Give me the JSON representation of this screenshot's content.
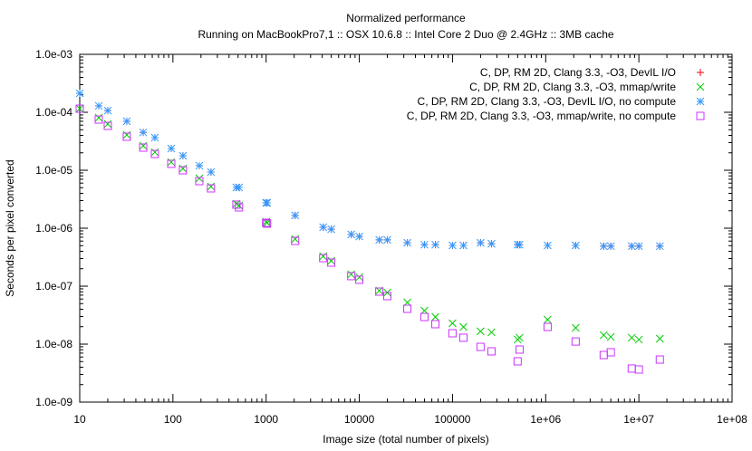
{
  "chart_data": {
    "type": "scatter",
    "title": "Normalized performance",
    "subtitle": "Running on MacBookPro7,1 :: OSX 10.6.8 :: Intel Core 2 Duo @ 2.4GHz :: 3MB cache",
    "xlabel": "Image size (total number of pixels)",
    "ylabel": "Seconds per pixel converted",
    "xscale": "log",
    "yscale": "log",
    "xlim": [
      10,
      100000000
    ],
    "ylim": [
      1e-09,
      0.001
    ],
    "grid": false,
    "legend": "top-right",
    "x_ticks": [
      "10",
      "100",
      "1000",
      "10000",
      "100000",
      "1e+06",
      "1e+07",
      "1e+08"
    ],
    "y_ticks": [
      "1.0e-09",
      "1.0e-08",
      "1.0e-07",
      "1.0e-06",
      "1.0e-05",
      "1.0e-04",
      "1.0e-03"
    ],
    "x": [
      10,
      16,
      20,
      32,
      48,
      64,
      96,
      128,
      192,
      256,
      480,
      512,
      1000,
      1024,
      2048,
      4096,
      5000,
      8192,
      10000,
      16384,
      20000,
      32768,
      50000,
      65536,
      100000,
      131072,
      200000,
      262144,
      500000,
      524288,
      1048576,
      2097152,
      4194304,
      5000000,
      8388608,
      10000000,
      16777216
    ],
    "series": [
      {
        "name": "C, DP, RM 2D, Clang 3.3, -O3, DevIL I/O",
        "marker": "plus",
        "color": "#ff0000",
        "values": [
          0.000213,
          0.000129,
          0.000107,
          7e-05,
          4.5e-05,
          3.65e-05,
          2.37e-05,
          1.78e-05,
          1.2e-05,
          9.3e-06,
          5.05e-06,
          5.05e-06,
          2.74e-06,
          2.74e-06,
          1.66e-06,
          1.04e-06,
          9.6e-07,
          7.8e-07,
          7.2e-07,
          6.3e-07,
          6.3e-07,
          5.6e-07,
          5.2e-07,
          5.2e-07,
          5.05e-07,
          5.05e-07,
          5.6e-07,
          5.4e-07,
          5.2e-07,
          5.2e-07,
          5.05e-07,
          5.05e-07,
          4.9e-07,
          4.9e-07,
          4.9e-07,
          4.9e-07,
          4.9e-07
        ]
      },
      {
        "name": "C, DP, RM 2D, Clang 3.3, -O3, mmap/write",
        "marker": "cross",
        "color": "#00cc00",
        "values": [
          0.0001155,
          8.06e-05,
          6.26e-05,
          4.07e-05,
          2.64e-05,
          2.05e-05,
          1.38e-05,
          1.07e-05,
          7.23e-06,
          5.23e-06,
          2.64e-06,
          2.46e-06,
          1.29e-06,
          1.24e-06,
          6.5e-07,
          3.28e-07,
          2.74e-07,
          1.6e-07,
          1.43e-07,
          8.35e-08,
          7.78e-08,
          5.23e-08,
          3.79e-08,
          2.94e-08,
          2.29e-08,
          1.98e-08,
          1.66e-08,
          1.6e-08,
          1.2e-08,
          1.29e-08,
          2.64e-08,
          1.91e-08,
          1.43e-08,
          1.33e-08,
          1.29e-08,
          1.2e-08,
          1.24e-08
        ]
      },
      {
        "name": "C, DP, RM 2D, Clang 3.3, -O3, DevIL I/O, no compute",
        "marker": "star",
        "color": "#3399ff",
        "values": [
          0.000213,
          0.000129,
          0.000107,
          7e-05,
          4.5e-05,
          3.65e-05,
          2.37e-05,
          1.78e-05,
          1.2e-05,
          9.3e-06,
          5.05e-06,
          5.05e-06,
          2.74e-06,
          2.74e-06,
          1.66e-06,
          1.04e-06,
          9.6e-07,
          7.8e-07,
          7.2e-07,
          6.3e-07,
          6.3e-07,
          5.6e-07,
          5.2e-07,
          5.2e-07,
          5.05e-07,
          5.05e-07,
          5.6e-07,
          5.4e-07,
          5.2e-07,
          5.2e-07,
          5.05e-07,
          5.05e-07,
          4.9e-07,
          4.9e-07,
          4.9e-07,
          4.9e-07,
          4.9e-07
        ]
      },
      {
        "name": "C, DP, RM 2D, Clang 3.3, -O3, mmap/write, no compute",
        "marker": "box",
        "color": "#cc33ff",
        "values": [
          0.0001155,
          7.5e-05,
          5.83e-05,
          3.79e-05,
          2.46e-05,
          1.91e-05,
          1.29e-05,
          1e-05,
          6.49e-06,
          4.87e-06,
          2.55e-06,
          2.29e-06,
          1.24e-06,
          1.2e-06,
          6.04e-07,
          3.05e-07,
          2.55e-07,
          1.49e-07,
          1.29e-07,
          8.06e-08,
          6.74e-08,
          4.07e-08,
          2.94e-08,
          2.21e-08,
          1.54e-08,
          1.29e-08,
          8.97e-09,
          7.5e-09,
          5.05e-09,
          8.06e-09,
          1.98e-08,
          1.11e-08,
          6.49e-09,
          7.24e-09,
          3.79e-09,
          3.65e-09,
          5.42e-09
        ]
      }
    ]
  }
}
